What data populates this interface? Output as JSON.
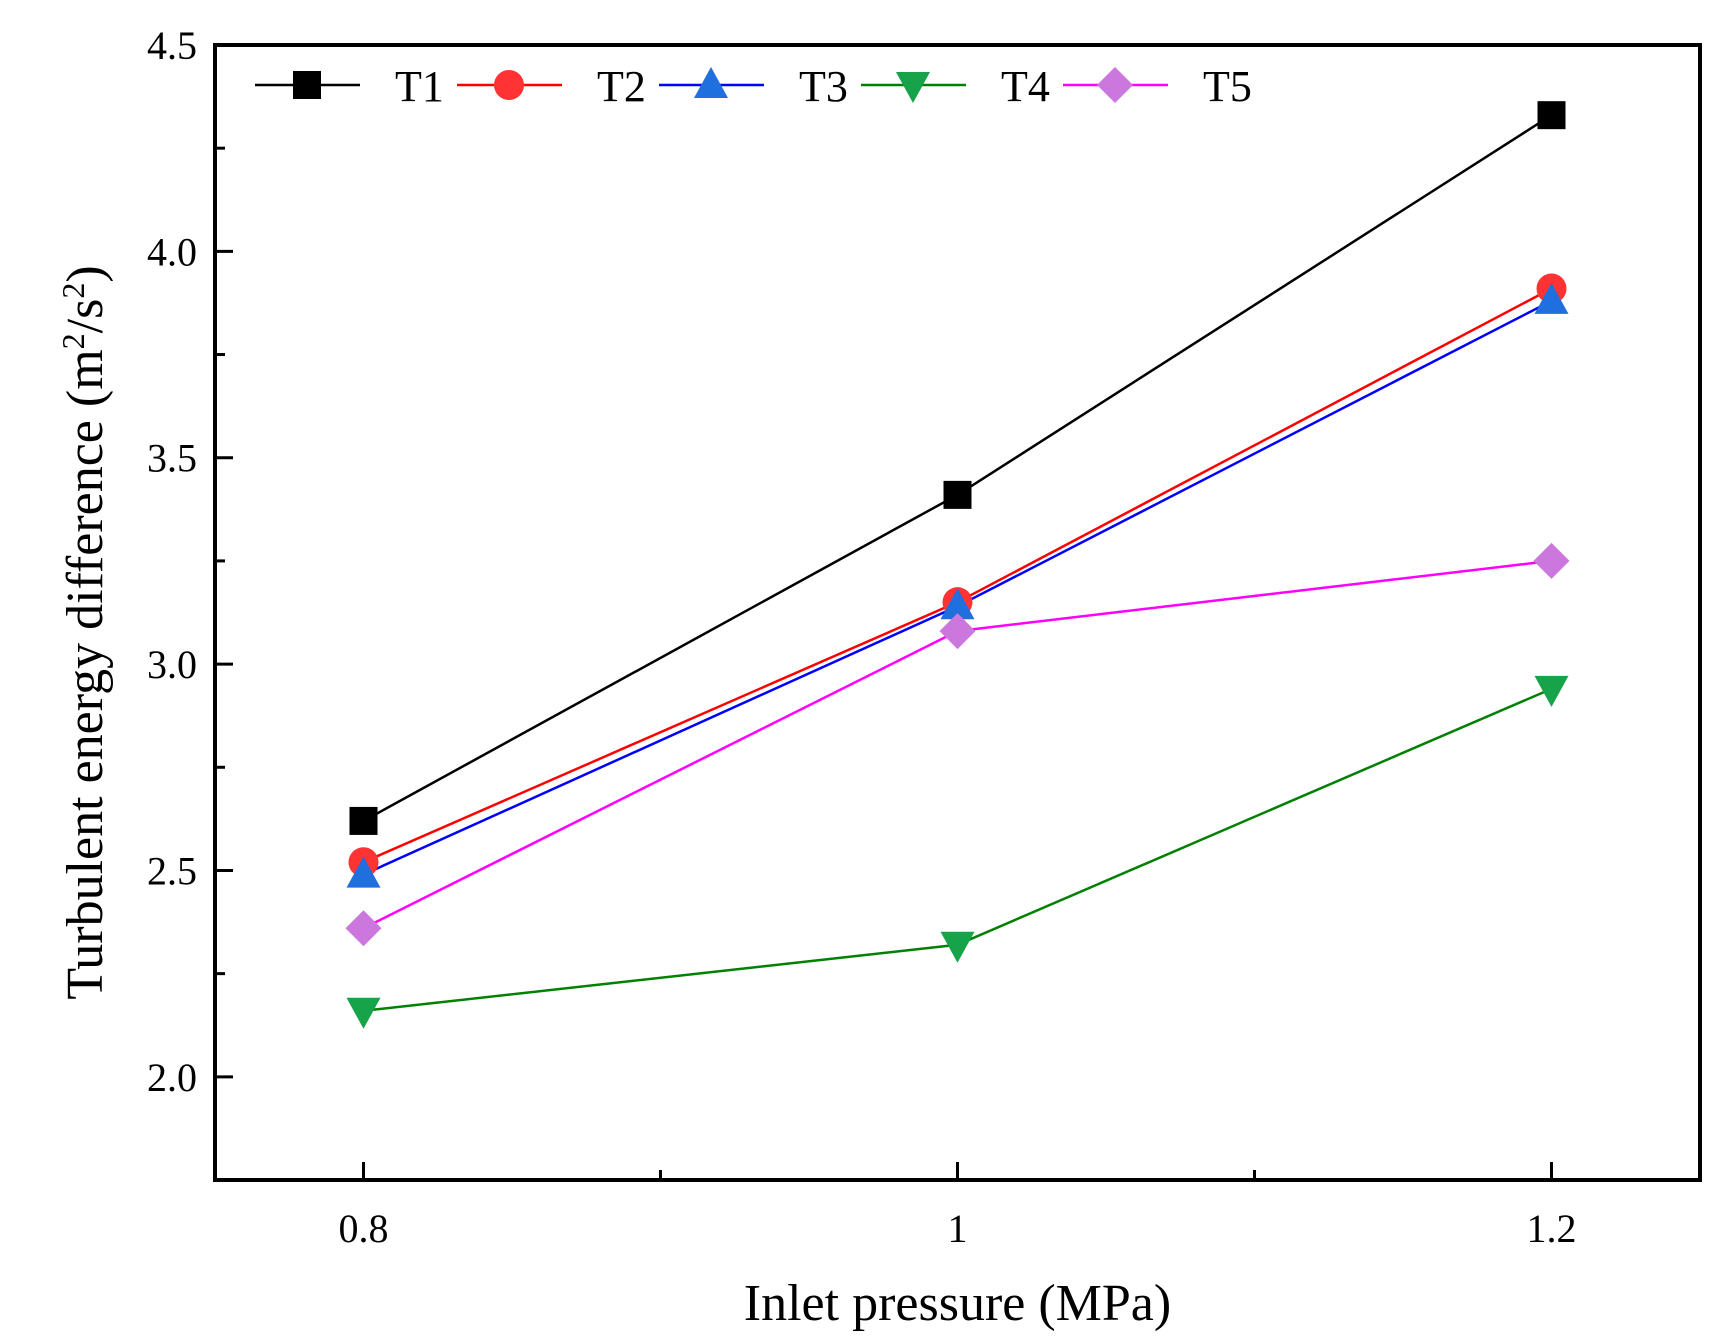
{
  "chart_data": {
    "type": "line",
    "title": "",
    "xlabel": "Inlet pressure (MPa)",
    "ylabel": {
      "prefix": "Turbulent energy difference (m",
      "sup1": "2",
      "mid": "/s",
      "sup2": "2",
      "suffix": ")"
    },
    "xlim": [
      0.75,
      1.25
    ],
    "ylim": [
      1.75,
      4.5
    ],
    "x": [
      0.8,
      1.0,
      1.2
    ],
    "x_tick_labels": [
      "0.8",
      "1",
      "1.2"
    ],
    "y_ticks": [
      2.0,
      2.5,
      3.0,
      3.5,
      4.0,
      4.5
    ],
    "y_tick_labels": [
      "2.0",
      "2.5",
      "3.0",
      "3.5",
      "4.0",
      "4.5"
    ],
    "grid": false,
    "legend_position": "top-left",
    "series": [
      {
        "name": "T1",
        "values": [
          2.62,
          3.41,
          4.33
        ],
        "color": "#000000",
        "marker": "square"
      },
      {
        "name": "T2",
        "values": [
          2.52,
          3.15,
          3.91
        ],
        "color": "#ff3333",
        "marker": "circle"
      },
      {
        "name": "T3",
        "values": [
          2.49,
          3.14,
          3.88
        ],
        "color": "#1f6fdf",
        "marker": "triangle-up"
      },
      {
        "name": "T4",
        "values": [
          2.16,
          2.32,
          2.94
        ],
        "color": "#16a34a",
        "marker": "triangle-down"
      },
      {
        "name": "T5",
        "values": [
          2.36,
          3.08,
          3.25
        ],
        "color": "#cc77dd",
        "marker": "diamond"
      }
    ],
    "line_colors": {
      "T1": "#000000",
      "T2": "#ff0000",
      "T3": "#0000ff",
      "T4": "#008000",
      "T5": "#ff00ff"
    }
  }
}
